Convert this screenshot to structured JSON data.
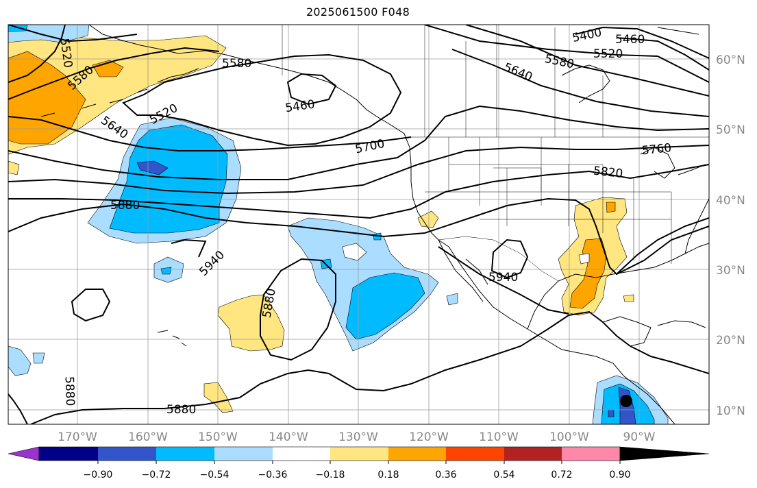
{
  "title": "2025061500 F048",
  "lat_labels": [
    "60°N",
    "50°N",
    "40°N",
    "30°N",
    "20°N",
    "10°N"
  ],
  "lon_labels": [
    "170°W",
    "160°W",
    "150°W",
    "140°W",
    "130°W",
    "120°W",
    "110°W",
    "100°W",
    "90°W"
  ],
  "colorbar": {
    "tick_labels": [
      "−0.90",
      "−0.72",
      "−0.54",
      "−0.36",
      "−0.18",
      "0.18",
      "0.36",
      "0.54",
      "0.72",
      "0.90"
    ],
    "colors": [
      "#9933cc",
      "#000088",
      "#3355cc",
      "#00bbff",
      "#aaddff",
      "#ffffff",
      "#ffe680",
      "#ffa500",
      "#ff4400",
      "#b22222",
      "#ff88aa"
    ]
  },
  "contour_labels": [
    {
      "text": "5400"
    },
    {
      "text": "5460"
    },
    {
      "text": "5520"
    },
    {
      "text": "5580"
    },
    {
      "text": "5640"
    },
    {
      "text": "5520"
    },
    {
      "text": "5580"
    },
    {
      "text": "5640"
    },
    {
      "text": "5520"
    },
    {
      "text": "5580"
    },
    {
      "text": "5460"
    },
    {
      "text": "5700"
    },
    {
      "text": "5760"
    },
    {
      "text": "5820"
    },
    {
      "text": "5880"
    },
    {
      "text": "5940"
    },
    {
      "text": "5940"
    },
    {
      "text": "5880"
    },
    {
      "text": "5880"
    },
    {
      "text": "5880"
    }
  ]
}
